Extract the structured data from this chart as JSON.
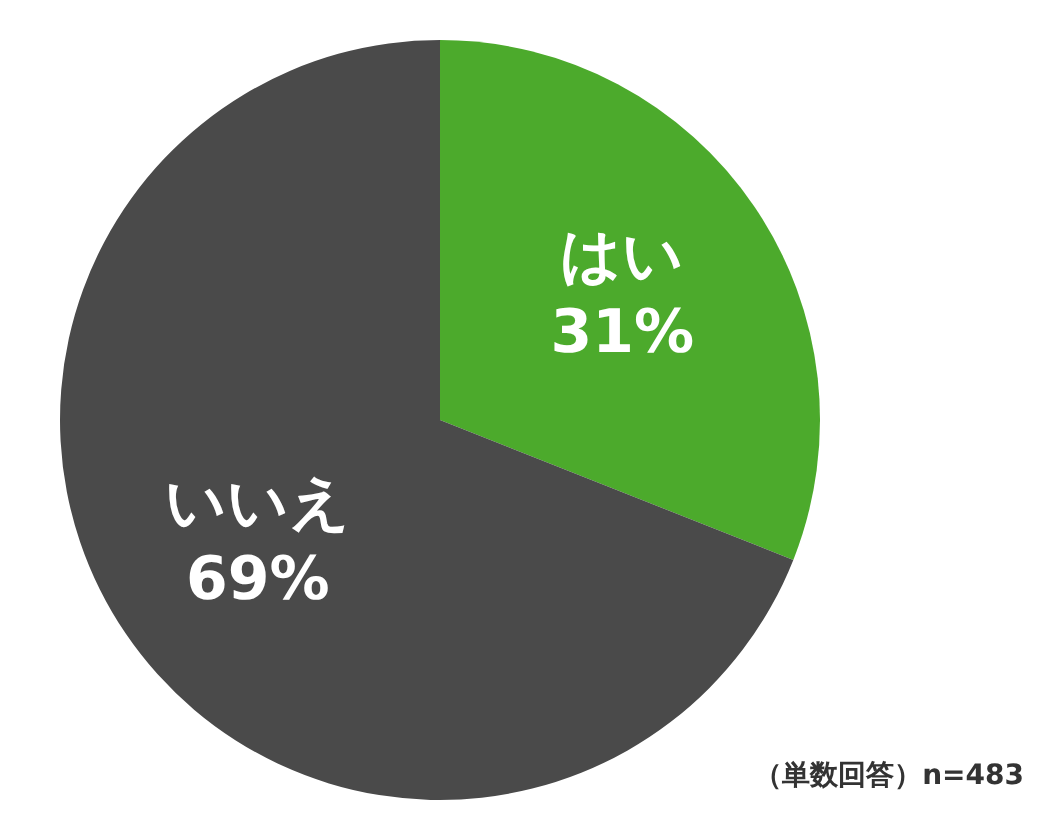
{
  "chart_data": {
    "type": "pie",
    "categories": [
      "はい",
      "いいえ"
    ],
    "values": [
      31,
      69
    ],
    "colors": [
      "#4caa2c",
      "#4a4a4a"
    ],
    "value_labels": [
      "31%",
      "69%"
    ],
    "legend": false,
    "annotations": [
      "（単数回答）n=483"
    ]
  }
}
